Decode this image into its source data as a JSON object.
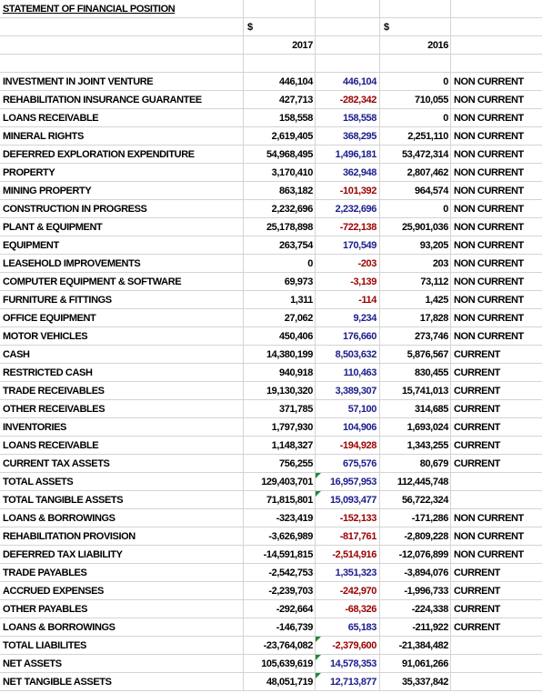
{
  "header": {
    "title": "STATEMENT OF FINANCIAL POSITION",
    "currency_2017": "$",
    "currency_2016": "$",
    "year_2017": "2017",
    "year_2016": "2016"
  },
  "table": {
    "rows": [
      {
        "label": "INVESTMENT IN JOINT VENTURE",
        "y2017": "446,104",
        "change": "446,104",
        "y2016": "0",
        "class": "NON CURRENT"
      },
      {
        "label": "REHABILITATION INSURANCE GUARANTEE",
        "y2017": "427,713",
        "change": "-282,342",
        "y2016": "710,055",
        "class": "NON CURRENT"
      },
      {
        "label": "LOANS RECEIVABLE",
        "y2017": "158,558",
        "change": "158,558",
        "y2016": "0",
        "class": "NON CURRENT"
      },
      {
        "label": "MINERAL RIGHTS",
        "y2017": "2,619,405",
        "change": "368,295",
        "y2016": "2,251,110",
        "class": "NON CURRENT"
      },
      {
        "label": "DEFERRED EXPLORATION EXPENDITURE",
        "y2017": "54,968,495",
        "change": "1,496,181",
        "y2016": "53,472,314",
        "class": "NON CURRENT"
      },
      {
        "label": "PROPERTY",
        "y2017": "3,170,410",
        "change": "362,948",
        "y2016": "2,807,462",
        "class": "NON CURRENT"
      },
      {
        "label": "MINING PROPERTY",
        "y2017": "863,182",
        "change": "-101,392",
        "y2016": "964,574",
        "class": "NON CURRENT"
      },
      {
        "label": "CONSTRUCTION IN PROGRESS",
        "y2017": "2,232,696",
        "change": "2,232,696",
        "y2016": "0",
        "class": "NON CURRENT"
      },
      {
        "label": "PLANT & EQUIPMENT",
        "y2017": "25,178,898",
        "change": "-722,138",
        "y2016": "25,901,036",
        "class": "NON CURRENT"
      },
      {
        "label": "EQUIPMENT",
        "y2017": "263,754",
        "change": "170,549",
        "y2016": "93,205",
        "class": "NON CURRENT"
      },
      {
        "label": "LEASEHOLD IMPROVEMENTS",
        "y2017": "0",
        "change": "-203",
        "y2016": "203",
        "class": "NON CURRENT"
      },
      {
        "label": "COMPUTER EQUIPMENT & SOFTWARE",
        "y2017": "69,973",
        "change": "-3,139",
        "y2016": "73,112",
        "class": "NON CURRENT"
      },
      {
        "label": "FURNITURE & FITTINGS",
        "y2017": "1,311",
        "change": "-114",
        "y2016": "1,425",
        "class": "NON CURRENT"
      },
      {
        "label": "OFFICE EQUIPMENT",
        "y2017": "27,062",
        "change": "9,234",
        "y2016": "17,828",
        "class": "NON CURRENT"
      },
      {
        "label": "MOTOR VEHICLES",
        "y2017": "450,406",
        "change": "176,660",
        "y2016": "273,746",
        "class": "NON CURRENT"
      },
      {
        "label": "CASH",
        "y2017": "14,380,199",
        "change": "8,503,632",
        "y2016": "5,876,567",
        "class": "CURRENT"
      },
      {
        "label": "RESTRICTED CASH",
        "y2017": "940,918",
        "change": "110,463",
        "y2016": "830,455",
        "class": "CURRENT"
      },
      {
        "label": "TRADE RECEIVABLES",
        "y2017": "19,130,320",
        "change": "3,389,307",
        "y2016": "15,741,013",
        "class": "CURRENT"
      },
      {
        "label": "OTHER RECEIVABLES",
        "y2017": "371,785",
        "change": "57,100",
        "y2016": "314,685",
        "class": "CURRENT"
      },
      {
        "label": "INVENTORIES",
        "y2017": "1,797,930",
        "change": "104,906",
        "y2016": "1,693,024",
        "class": "CURRENT"
      },
      {
        "label": "LOANS RECEIVABLE",
        "y2017": "1,148,327",
        "change": "-194,928",
        "y2016": "1,343,255",
        "class": "CURRENT"
      },
      {
        "label": "CURRENT TAX ASSETS",
        "y2017": "756,255",
        "change": "675,576",
        "y2016": "80,679",
        "class": "CURRENT"
      },
      {
        "label": "TOTAL ASSETS",
        "y2017": "129,403,701",
        "change": "16,957,953",
        "y2016": "112,445,748"
      },
      {
        "label": "TOTAL TANGIBLE ASSETS",
        "y2017": "71,815,801",
        "change": "15,093,477",
        "y2016": "56,722,324"
      },
      {
        "label": "LOANS & BORROWINGS",
        "y2017": "-323,419",
        "change": "-152,133",
        "y2016": "-171,286",
        "class": "NON CURRENT"
      },
      {
        "label": "REHABILITATION PROVISION",
        "y2017": "-3,626,989",
        "change": "-817,761",
        "y2016": "-2,809,228",
        "class": "NON CURRENT"
      },
      {
        "label": "DEFERRED TAX LIABILITY",
        "y2017": "-14,591,815",
        "change": "-2,514,916",
        "y2016": "-12,076,899",
        "class": "NON CURRENT"
      },
      {
        "label": "TRADE PAYABLES",
        "y2017": "-2,542,753",
        "change": "1,351,323",
        "y2016": "-3,894,076",
        "class": "CURRENT"
      },
      {
        "label": "ACCRUED EXPENSES",
        "y2017": "-2,239,703",
        "change": "-242,970",
        "y2016": "-1,996,733",
        "class": "CURRENT"
      },
      {
        "label": "OTHER PAYABLES",
        "y2017": "-292,664",
        "change": "-68,326",
        "y2016": "-224,338",
        "class": "CURRENT"
      },
      {
        "label": "LOANS & BORROWINGS",
        "y2017": "-146,739",
        "change": "65,183",
        "y2016": "-211,922",
        "class": "CURRENT"
      },
      {
        "label": "TOTAL LIABILITES",
        "y2017": "-23,764,082",
        "change": "-2,379,600",
        "y2016": "-21,384,482"
      },
      {
        "label": "NET ASSETS",
        "y2017": "105,639,619",
        "change": "14,578,353",
        "y2016": "91,061,266"
      },
      {
        "label": "NET TANGIBLE ASSETS",
        "y2017": "48,051,719",
        "change": "12,713,877",
        "y2016": "35,337,842"
      }
    ]
  }
}
